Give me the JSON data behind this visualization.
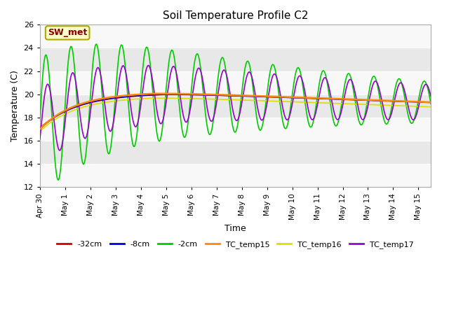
{
  "title": "Soil Temperature Profile C2",
  "xlabel": "Time",
  "ylabel": "Temperature (C)",
  "ylim": [
    12,
    26
  ],
  "xlim_days": [
    0,
    15.5
  ],
  "background_color": "#ffffff",
  "plot_bg_color": "#e8e8e8",
  "band_color_light": "#f0f0f0",
  "band_color_dark": "#e0e0e0",
  "annotation_text": "SW_met",
  "annotation_color": "#8B0000",
  "annotation_bg": "#ffffcc",
  "annotation_border": "#aaaa00",
  "series": {
    "neg32cm": {
      "color": "#cc0000",
      "label": "-32cm",
      "lw": 1.2
    },
    "neg8cm": {
      "color": "#0000cc",
      "label": "-8cm",
      "lw": 1.2
    },
    "neg2cm": {
      "color": "#00cc00",
      "label": "-2cm",
      "lw": 1.2
    },
    "tc15": {
      "color": "#ff8800",
      "label": "TC_temp15",
      "lw": 1.8
    },
    "tc16": {
      "color": "#dddd00",
      "label": "TC_temp16",
      "lw": 1.2
    },
    "tc17": {
      "color": "#9900cc",
      "label": "TC_temp17",
      "lw": 1.2
    }
  },
  "yticks": [
    12,
    14,
    16,
    18,
    20,
    22,
    24,
    26
  ],
  "xtick_labels": [
    "Apr 30",
    "May 1",
    "May 2",
    "May 3",
    "May 4",
    "May 5",
    "May 6",
    "May 7",
    "May 8",
    "May 9",
    "May 10",
    "May 11",
    "May 12",
    "May 13",
    "May 14",
    "May 15"
  ],
  "xtick_positions": [
    0,
    1,
    2,
    3,
    4,
    5,
    6,
    7,
    8,
    9,
    10,
    11,
    12,
    13,
    14,
    15
  ]
}
